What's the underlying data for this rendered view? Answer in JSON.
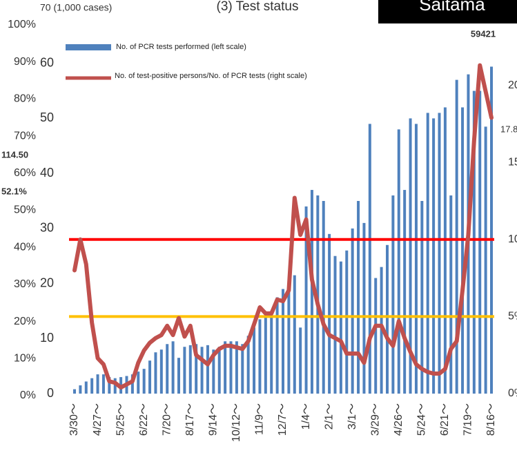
{
  "chart_data": {
    "type": "bar",
    "title": "(3) Test status",
    "badge": "Saitama",
    "categories": [
      "3/30～",
      null,
      null,
      null,
      "4/27～",
      null,
      null,
      null,
      "5/25～",
      null,
      null,
      null,
      "6/22～",
      null,
      null,
      null,
      "7/20～",
      null,
      null,
      null,
      "8/17～",
      null,
      null,
      null,
      "9/14～",
      null,
      null,
      null,
      "10/12～",
      null,
      null,
      null,
      "11/9～",
      null,
      null,
      null,
      "12/7～",
      null,
      null,
      null,
      "1/4～",
      null,
      null,
      null,
      "2/1～",
      null,
      null,
      null,
      "3/1～",
      null,
      null,
      null,
      "3/29～",
      null,
      null,
      null,
      "4/26～",
      null,
      null,
      null,
      "5/24～",
      null,
      null,
      null,
      "6/21～",
      null,
      null,
      null,
      "7/19～",
      null,
      null,
      null,
      "8/16～"
    ],
    "series": [
      {
        "name": "No. of PCR tests performed (left scale)",
        "color": "#4f81bd",
        "values": [
          0.8,
          1.5,
          2.2,
          2.8,
          3.5,
          3.5,
          3,
          2.8,
          3,
          3.2,
          3.5,
          4,
          4.5,
          6,
          7.5,
          8,
          9,
          9.5,
          6.5,
          8.5,
          8.8,
          9,
          8.5,
          8.8,
          8,
          8.5,
          9.5,
          9.5,
          9.5,
          9,
          10.5,
          12,
          13.5,
          14,
          15,
          17.5,
          19,
          19,
          21.5,
          12,
          34,
          37,
          36,
          35,
          29,
          25,
          24,
          26,
          30,
          35,
          31,
          49,
          21,
          23,
          27,
          36,
          48,
          37,
          50,
          49,
          35,
          51,
          50,
          51,
          52,
          36,
          57,
          52,
          58,
          55,
          55,
          48.5,
          59.4
        ]
      },
      {
        "name": "No. of test-positive persons/No. of PCR tests (right scale)",
        "color": "#c0504d",
        "axis": "y2",
        "values": [
          8.0,
          10.0,
          8.4,
          4.6,
          2.3,
          1.9,
          0.8,
          0.7,
          0.4,
          0.6,
          0.8,
          2.0,
          2.8,
          3.3,
          3.6,
          3.8,
          4.4,
          3.8,
          4.9,
          3.7,
          4.4,
          2.5,
          2.2,
          1.9,
          2.5,
          2.9,
          3.1,
          3.1,
          3.0,
          2.9,
          3.4,
          4.5,
          5.6,
          5.2,
          5.2,
          6.1,
          6.0,
          6.7,
          12.7,
          10.3,
          11.3,
          7.4,
          5.8,
          4.5,
          3.8,
          3.6,
          3.4,
          2.6,
          2.6,
          2.6,
          2.0,
          3.6,
          4.4,
          4.4,
          3.6,
          3.1,
          4.7,
          3.6,
          2.7,
          1.9,
          1.6,
          1.4,
          1.3,
          1.3,
          1.6,
          2.9,
          3.4,
          6.7,
          10.3,
          16.4,
          21.3,
          19.6,
          17.9
        ]
      }
    ],
    "ylim": [
      0,
      70
    ],
    "yticks": [
      0,
      10,
      20,
      30,
      40,
      50,
      60,
      {
        "value": 70,
        "label": "70 (1,000 cases)"
      }
    ],
    "y2lim": [
      0,
      25
    ],
    "y2ticks": [
      {
        "value": 0,
        "label": "0%"
      },
      {
        "value": 5,
        "label": "5%"
      },
      {
        "value": 10,
        "label": "10%"
      },
      {
        "value": 15,
        "label": "15%"
      },
      {
        "value": 20,
        "label": "20%"
      }
    ],
    "percent_axis": {
      "lim": [
        0,
        100
      ],
      "ticks": [
        {
          "value": 0,
          "label": "0%"
        },
        {
          "value": 10,
          "label": "10%"
        },
        {
          "value": 20,
          "label": "20%"
        },
        {
          "value": 30,
          "label": "30%"
        },
        {
          "value": 40,
          "label": "40%"
        },
        {
          "value": 50,
          "label": "50%"
        },
        {
          "value": 60,
          "label": "60%"
        },
        {
          "value": 70,
          "label": "70%"
        },
        {
          "value": 80,
          "label": "80%"
        },
        {
          "value": 90,
          "label": "90%"
        },
        {
          "value": 100,
          "label": "100%"
        }
      ]
    },
    "reference_lines": [
      {
        "value": 10,
        "color": "#ff0000"
      },
      {
        "value": 5,
        "color": "#ffc000"
      }
    ],
    "annotations": [
      "59421",
      "114.50",
      "52.1%",
      "17.8"
    ]
  }
}
